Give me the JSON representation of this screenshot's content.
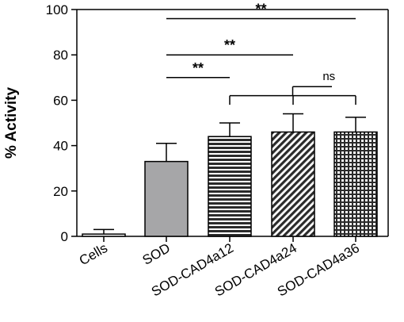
{
  "chart_data": {
    "type": "bar",
    "title": "",
    "xlabel": "",
    "ylabel": "% Activity",
    "ylim": [
      0,
      100
    ],
    "yticks": [
      0,
      20,
      40,
      60,
      80,
      100
    ],
    "grid": false,
    "categories": [
      "Cells",
      "SOD",
      "SOD-CAD4a12",
      "SOD-CAD4a24",
      "SOD-CAD4a36"
    ],
    "values": [
      1,
      33,
      44,
      46,
      46
    ],
    "errors": [
      2,
      8,
      6,
      8,
      6.5
    ],
    "fills": [
      "solid-white",
      "solid-gray",
      "horizontal-lines",
      "diagonal-lines",
      "grid-lines"
    ],
    "colors": {
      "bar_gray": "#a6a6a8",
      "bar_dark": "#2b2b2b",
      "line": "#000000"
    },
    "annotations": [
      {
        "from": "SOD",
        "to": "SOD-CAD4a36",
        "y": 96,
        "label": "**"
      },
      {
        "from": "SOD",
        "to": "SOD-CAD4a24",
        "y": 80,
        "label": "**"
      },
      {
        "from": "SOD",
        "to": "SOD-CAD4a12",
        "y": 70,
        "label": "**"
      }
    ],
    "ns_bracket": {
      "left": "SOD-CAD4a12",
      "middle": "SOD-CAD4a24",
      "right": "SOD-CAD4a36",
      "label": "ns"
    }
  }
}
